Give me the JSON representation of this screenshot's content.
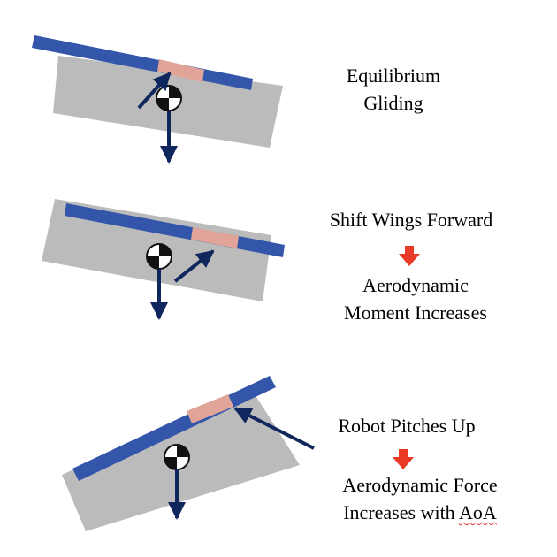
{
  "colors": {
    "body": "#bbbbbb",
    "wing": "#3355aa",
    "wing_patch": "#e0a498",
    "arrow": "#10275e",
    "transition_arrow": "#e83a24",
    "cg_dark": "#111111",
    "cg_light": "#ffffff",
    "spellcheck": "#e03030"
  },
  "icons": {
    "center_of_gravity": "center-of-gravity-icon",
    "transition": "red-down-arrow-icon"
  },
  "panels": [
    {
      "id": "equilibrium",
      "lines": [
        "Equilibrium",
        "Gliding"
      ]
    },
    {
      "id": "shift-wings",
      "step": "Shift Wings Forward",
      "lines": [
        "Aerodynamic",
        "Moment Increases"
      ]
    },
    {
      "id": "pitch-up",
      "step": "Robot Pitches Up",
      "lines": [
        "Aerodynamic Force",
        "Increases with "
      ],
      "misspelled_word": "AoA"
    }
  ]
}
